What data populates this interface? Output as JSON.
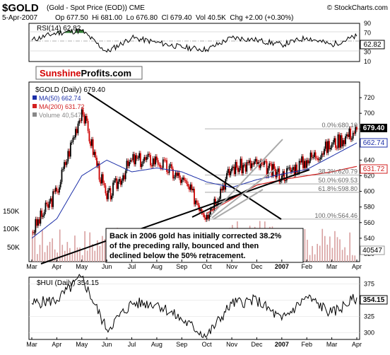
{
  "header": {
    "symbol": "$GOLD",
    "subtitle": "(Gold - Spot Price (EOD)) CME",
    "copyright": "© StockCharts.com",
    "date": "5-Apr-2007",
    "stats": "Op 677.50  Hi 681.00  Lo 676.80  Cl 679.40  Vol 40.5K  Chg +2.00 (+0.30%)",
    "chg_arrow": "▲"
  },
  "logo": {
    "part1": "Sunshine",
    "part2": "Profits.com"
  },
  "rsi_panel": {
    "label": "RSI(14) 62.82",
    "ticks": [
      "90",
      "70",
      "50",
      "30",
      "10"
    ],
    "current": "62.82"
  },
  "price_panel": {
    "title": "$GOLD (Daily) 679.40",
    "legend": [
      {
        "text": "MA(50) 662.74",
        "color": "#1c2fa8"
      },
      {
        "text": "MA(200) 631.72",
        "color": "#d21f1f"
      },
      {
        "text": "Volume 40,547",
        "color": "#888888"
      }
    ],
    "y_ticks": [
      "720",
      "700",
      "680",
      "660",
      "640",
      "620",
      "600",
      "580",
      "560",
      "540",
      "520"
    ],
    "volume_ticks": [
      "150K",
      "100K",
      "50K"
    ],
    "tags": {
      "close": "679.40",
      "ma50": "662.74",
      "ma200": "631.72",
      "volume": "40547"
    },
    "fib_labels": [
      "0.0%:680.10",
      "38.2%:620.79",
      "50.0%:609.53",
      "61.8%:598.80",
      "100.0%:564.46"
    ],
    "annotation": [
      "Back in 2006 gold has initially corrected 38.2%",
      "of the preceding rally, bounced and then",
      "declined below the 50% retracement."
    ]
  },
  "hui_panel": {
    "label": "$HUI (Daily) 354.15",
    "ticks": [
      "375",
      "350",
      "325",
      "300"
    ],
    "current": "354.15"
  },
  "x_axis": [
    "Mar",
    "Apr",
    "May",
    "Jun",
    "Jul",
    "Aug",
    "Sep",
    "Oct",
    "Nov",
    "Dec",
    "2007",
    "Feb",
    "Mar",
    "Apr"
  ],
  "colors": {
    "up": "#000000",
    "down": "#cc0000",
    "ma50": "#1c2fa8",
    "ma200": "#d21f1f",
    "volume": "#d8a0a0",
    "rsi_fill": "#2e7d32",
    "close_tag": "#000000",
    "ma50_tag": "#1c2fa8",
    "ma200_tag": "#d21f1f",
    "logo_red": "#d40000"
  },
  "chart_data": {
    "type": "line",
    "title": "$GOLD (Daily) 679.40",
    "x": [
      "Mar",
      "Apr",
      "May",
      "Jun",
      "Jul",
      "Aug",
      "Sep",
      "Oct",
      "Nov",
      "Dec",
      "2007",
      "Feb",
      "Mar",
      "Apr"
    ],
    "ylim": [
      510,
      740
    ],
    "series": [
      {
        "name": "$GOLD",
        "values": [
          548,
          600,
          705,
          590,
          640,
          640,
          615,
          570,
          630,
          635,
          620,
          640,
          660,
          679
        ]
      },
      {
        "name": "MA(50)",
        "values": [
          540,
          565,
          620,
          640,
          625,
          630,
          625,
          612,
          605,
          615,
          622,
          628,
          645,
          662
        ]
      },
      {
        "name": "MA(200)",
        "values": [
          null,
          null,
          null,
          null,
          null,
          null,
          null,
          572,
          590,
          608,
          615,
          620,
          625,
          632
        ]
      }
    ],
    "rsi": {
      "ylim": [
        10,
        90
      ],
      "values": [
        55,
        70,
        75,
        30,
        60,
        50,
        40,
        35,
        60,
        55,
        45,
        60,
        45,
        63
      ]
    },
    "hui": {
      "ylim": [
        290,
        385
      ],
      "values": [
        345,
        350,
        385,
        305,
        345,
        345,
        320,
        295,
        345,
        350,
        320,
        355,
        330,
        354
      ]
    }
  }
}
